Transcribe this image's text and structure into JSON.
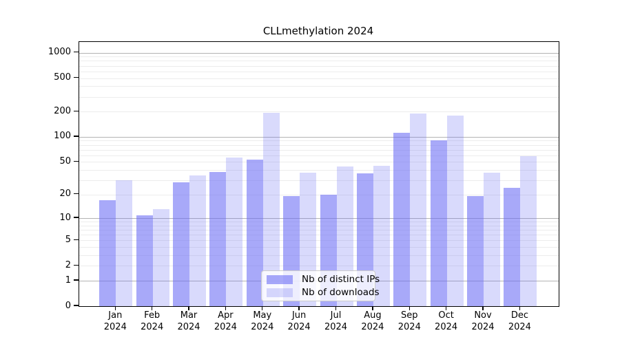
{
  "title": "CLLmethylation 2024",
  "chart_data": {
    "type": "bar",
    "title": "CLLmethylation 2024",
    "categories": [
      "Jan",
      "Feb",
      "Mar",
      "Apr",
      "May",
      "Jun",
      "Jul",
      "Aug",
      "Sep",
      "Oct",
      "Nov",
      "Dec"
    ],
    "category_year": "2024",
    "series": [
      {
        "name": "Nb of distinct IPs",
        "color": "rgba(105,107,245,0.58)",
        "values": [
          17,
          11,
          28,
          38,
          53,
          19,
          20,
          36,
          112,
          90,
          19,
          24
        ]
      },
      {
        "name": "Nb of downloads",
        "color": "rgba(105,107,245,0.25)",
        "values": [
          30,
          13,
          34,
          57,
          195,
          37,
          44,
          45,
          191,
          180,
          37,
          59
        ]
      }
    ],
    "y_axis": {
      "ticks": [
        0,
        1,
        2,
        5,
        10,
        20,
        50,
        100,
        200,
        500,
        1000
      ],
      "scale": "log10(value+1)",
      "major_gridlines": [
        1,
        10,
        100,
        1000
      ],
      "minor_gridlines": [
        2,
        3,
        4,
        5,
        6,
        7,
        8,
        9,
        20,
        30,
        40,
        50,
        60,
        70,
        80,
        90,
        200,
        300,
        400,
        500,
        600,
        700,
        800,
        900
      ]
    },
    "grid": true,
    "legend_position": "inside-bottom-center",
    "colors": {
      "spine": "#000000",
      "major_grid": "#b3b3b3",
      "minor_grid": "#ececec"
    }
  }
}
